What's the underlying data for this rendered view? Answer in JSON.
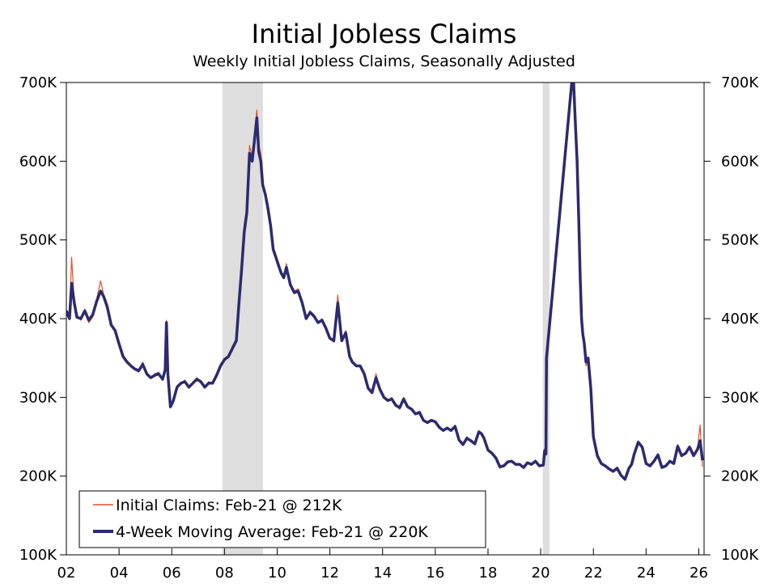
{
  "chart_data": {
    "type": "line",
    "title": "Initial Jobless Claims",
    "subtitle": "Weekly Initial Jobless Claims, Seasonally Adjusted",
    "xlim": [
      2002.0,
      2026.2
    ],
    "ylim": [
      100,
      700
    ],
    "x_ticks": [
      {
        "value": 2002,
        "label": "02"
      },
      {
        "value": 2004,
        "label": "04"
      },
      {
        "value": 2006,
        "label": "06"
      },
      {
        "value": 2008,
        "label": "08"
      },
      {
        "value": 2010,
        "label": "10"
      },
      {
        "value": 2012,
        "label": "12"
      },
      {
        "value": 2014,
        "label": "14"
      },
      {
        "value": 2016,
        "label": "16"
      },
      {
        "value": 2018,
        "label": "18"
      },
      {
        "value": 2020,
        "label": "20"
      },
      {
        "value": 2022,
        "label": "22"
      },
      {
        "value": 2024,
        "label": "24"
      },
      {
        "value": 2026,
        "label": "26"
      }
    ],
    "y_ticks": [
      {
        "value": 100,
        "label": "100K"
      },
      {
        "value": 200,
        "label": "200K"
      },
      {
        "value": 300,
        "label": "300K"
      },
      {
        "value": 400,
        "label": "400K"
      },
      {
        "value": 500,
        "label": "500K"
      },
      {
        "value": 600,
        "label": "600K"
      },
      {
        "value": 700,
        "label": "700K"
      }
    ],
    "grid": false,
    "legend_position": "bottom-left",
    "recessions": [
      {
        "start": 2007.92,
        "end": 2009.46
      },
      {
        "start": 2020.08,
        "end": 2020.33
      }
    ],
    "series": [
      {
        "name": "Initial Claims: Feb-21 @ 212K",
        "color": "#e0502a",
        "x": [
          2002.0,
          2002.12,
          2002.2,
          2002.3,
          2002.4,
          2002.55,
          2002.7,
          2002.85,
          2003.0,
          2003.15,
          2003.3,
          2003.42,
          2003.55,
          2003.7,
          2003.85,
          2004.0,
          2004.15,
          2004.3,
          2004.45,
          2004.6,
          2004.75,
          2004.9,
          2005.05,
          2005.2,
          2005.35,
          2005.5,
          2005.65,
          2005.75,
          2005.8,
          2005.85,
          2005.95,
          2006.05,
          2006.2,
          2006.35,
          2006.5,
          2006.65,
          2006.8,
          2006.95,
          2007.1,
          2007.25,
          2007.4,
          2007.55,
          2007.7,
          2007.85,
          2008.0,
          2008.15,
          2008.3,
          2008.45,
          2008.55,
          2008.65,
          2008.75,
          2008.85,
          2008.95,
          2009.05,
          2009.15,
          2009.23,
          2009.3,
          2009.38,
          2009.45,
          2009.55,
          2009.65,
          2009.75,
          2009.85,
          2009.95,
          2010.05,
          2010.15,
          2010.25,
          2010.35,
          2010.5,
          2010.65,
          2010.8,
          2010.95,
          2011.1,
          2011.25,
          2011.4,
          2011.55,
          2011.7,
          2011.85,
          2012.0,
          2012.15,
          2012.3,
          2012.45,
          2012.6,
          2012.75,
          2012.85,
          2013.0,
          2013.15,
          2013.3,
          2013.45,
          2013.6,
          2013.75,
          2013.9,
          2014.05,
          2014.2,
          2014.35,
          2014.5,
          2014.65,
          2014.8,
          2014.95,
          2015.1,
          2015.25,
          2015.4,
          2015.55,
          2015.7,
          2015.85,
          2016.0,
          2016.15,
          2016.3,
          2016.45,
          2016.6,
          2016.75,
          2016.9,
          2017.05,
          2017.2,
          2017.35,
          2017.5,
          2017.65,
          2017.75,
          2017.85,
          2018.0,
          2018.15,
          2018.3,
          2018.45,
          2018.6,
          2018.75,
          2018.9,
          2019.05,
          2019.2,
          2019.35,
          2019.5,
          2019.65,
          2019.8,
          2019.95,
          2020.1,
          2020.15,
          2020.2,
          2020.22,
          2021.18,
          2021.25,
          2021.32,
          2021.38,
          2021.45,
          2021.5,
          2021.55,
          2021.6,
          2021.65,
          2021.72,
          2021.8,
          2021.9,
          2022.0,
          2022.15,
          2022.3,
          2022.45,
          2022.6,
          2022.75,
          2022.9,
          2023.05,
          2023.2,
          2023.35,
          2023.45,
          2023.55,
          2023.7,
          2023.85,
          2024.0,
          2024.15,
          2024.3,
          2024.45,
          2024.6,
          2024.75,
          2024.9,
          2025.05,
          2025.2,
          2025.35,
          2025.5,
          2025.65,
          2025.8,
          2025.95,
          2026.05,
          2026.14
        ],
        "values": [
          405,
          400,
          478,
          420,
          405,
          398,
          412,
          395,
          402,
          425,
          448,
          430,
          415,
          392,
          385,
          368,
          355,
          345,
          340,
          335,
          332,
          345,
          330,
          325,
          330,
          332,
          322,
          340,
          398,
          330,
          288,
          295,
          315,
          318,
          322,
          312,
          318,
          325,
          320,
          312,
          320,
          318,
          330,
          342,
          350,
          350,
          365,
          375,
          430,
          470,
          520,
          540,
          620,
          605,
          640,
          665,
          620,
          610,
          575,
          560,
          545,
          520,
          490,
          480,
          470,
          460,
          455,
          470,
          445,
          435,
          438,
          420,
          400,
          410,
          405,
          395,
          400,
          388,
          375,
          370,
          430,
          372,
          385,
          350,
          345,
          340,
          340,
          330,
          310,
          305,
          330,
          310,
          300,
          295,
          300,
          290,
          285,
          300,
          288,
          285,
          278,
          282,
          271,
          268,
          272,
          270,
          262,
          258,
          262,
          258,
          265,
          245,
          240,
          250,
          245,
          240,
          258,
          255,
          250,
          232,
          228,
          222,
          210,
          212,
          218,
          220,
          215,
          215,
          210,
          218,
          215,
          220,
          212,
          214,
          235,
          230,
          350,
          700,
          700,
          650,
          600,
          520,
          450,
          400,
          380,
          370,
          340,
          350,
          310,
          250,
          225,
          215,
          212,
          208,
          205,
          210,
          200,
          195,
          210,
          215,
          230,
          245,
          238,
          215,
          212,
          220,
          228,
          210,
          212,
          220,
          215,
          240,
          225,
          230,
          238,
          225,
          235,
          265,
          212
        ]
      },
      {
        "name": "4-Week Moving Average: Feb-21 @ 220K",
        "color": "#2d2a6e",
        "x": [
          2002.0,
          2002.12,
          2002.2,
          2002.3,
          2002.4,
          2002.55,
          2002.7,
          2002.85,
          2003.0,
          2003.15,
          2003.3,
          2003.42,
          2003.55,
          2003.7,
          2003.85,
          2004.0,
          2004.15,
          2004.3,
          2004.45,
          2004.6,
          2004.75,
          2004.9,
          2005.05,
          2005.2,
          2005.35,
          2005.5,
          2005.65,
          2005.75,
          2005.8,
          2005.85,
          2005.95,
          2006.05,
          2006.2,
          2006.35,
          2006.5,
          2006.65,
          2006.8,
          2006.95,
          2007.1,
          2007.25,
          2007.4,
          2007.55,
          2007.7,
          2007.85,
          2008.0,
          2008.15,
          2008.3,
          2008.45,
          2008.55,
          2008.65,
          2008.75,
          2008.85,
          2008.95,
          2009.05,
          2009.15,
          2009.23,
          2009.3,
          2009.38,
          2009.45,
          2009.55,
          2009.65,
          2009.75,
          2009.85,
          2009.95,
          2010.05,
          2010.15,
          2010.25,
          2010.35,
          2010.5,
          2010.65,
          2010.8,
          2010.95,
          2011.1,
          2011.25,
          2011.4,
          2011.55,
          2011.7,
          2011.85,
          2012.0,
          2012.15,
          2012.3,
          2012.45,
          2012.6,
          2012.75,
          2012.85,
          2013.0,
          2013.15,
          2013.3,
          2013.45,
          2013.6,
          2013.75,
          2013.9,
          2014.05,
          2014.2,
          2014.35,
          2014.5,
          2014.65,
          2014.8,
          2014.95,
          2015.1,
          2015.25,
          2015.4,
          2015.55,
          2015.7,
          2015.85,
          2016.0,
          2016.15,
          2016.3,
          2016.45,
          2016.6,
          2016.75,
          2016.9,
          2017.05,
          2017.2,
          2017.35,
          2017.5,
          2017.65,
          2017.75,
          2017.85,
          2018.0,
          2018.15,
          2018.3,
          2018.45,
          2018.6,
          2018.75,
          2018.9,
          2019.05,
          2019.2,
          2019.35,
          2019.5,
          2019.65,
          2019.8,
          2019.95,
          2020.1,
          2020.15,
          2020.2,
          2020.22,
          2021.18,
          2021.25,
          2021.32,
          2021.38,
          2021.45,
          2021.5,
          2021.55,
          2021.6,
          2021.65,
          2021.72,
          2021.8,
          2021.9,
          2022.0,
          2022.15,
          2022.3,
          2022.45,
          2022.6,
          2022.75,
          2022.9,
          2023.05,
          2023.2,
          2023.35,
          2023.45,
          2023.55,
          2023.7,
          2023.85,
          2024.0,
          2024.15,
          2024.3,
          2024.45,
          2024.6,
          2024.75,
          2024.9,
          2025.05,
          2025.2,
          2025.35,
          2025.5,
          2025.65,
          2025.8,
          2025.95,
          2026.05,
          2026.14
        ],
        "values": [
          410,
          400,
          445,
          420,
          402,
          400,
          410,
          398,
          405,
          422,
          435,
          428,
          415,
          392,
          385,
          368,
          352,
          345,
          340,
          336,
          334,
          342,
          330,
          325,
          328,
          330,
          323,
          335,
          395,
          330,
          288,
          295,
          313,
          318,
          320,
          313,
          318,
          323,
          320,
          313,
          318,
          318,
          328,
          340,
          348,
          352,
          362,
          372,
          420,
          462,
          510,
          535,
          610,
          600,
          630,
          655,
          612,
          600,
          570,
          558,
          540,
          518,
          488,
          478,
          468,
          458,
          452,
          465,
          443,
          433,
          435,
          420,
          400,
          408,
          403,
          395,
          398,
          388,
          375,
          372,
          420,
          372,
          382,
          352,
          345,
          340,
          340,
          330,
          312,
          306,
          325,
          310,
          300,
          296,
          298,
          290,
          287,
          298,
          288,
          285,
          279,
          281,
          271,
          268,
          271,
          269,
          262,
          258,
          261,
          258,
          263,
          246,
          240,
          248,
          245,
          241,
          256,
          254,
          248,
          233,
          229,
          223,
          212,
          213,
          218,
          219,
          215,
          215,
          211,
          217,
          215,
          219,
          213,
          214,
          232,
          228,
          350,
          700,
          700,
          645,
          600,
          520,
          450,
          400,
          380,
          370,
          345,
          350,
          312,
          250,
          226,
          216,
          213,
          209,
          206,
          210,
          201,
          196,
          210,
          215,
          228,
          243,
          237,
          216,
          213,
          219,
          227,
          211,
          213,
          219,
          216,
          238,
          226,
          229,
          237,
          226,
          234,
          245,
          220
        ]
      }
    ]
  }
}
